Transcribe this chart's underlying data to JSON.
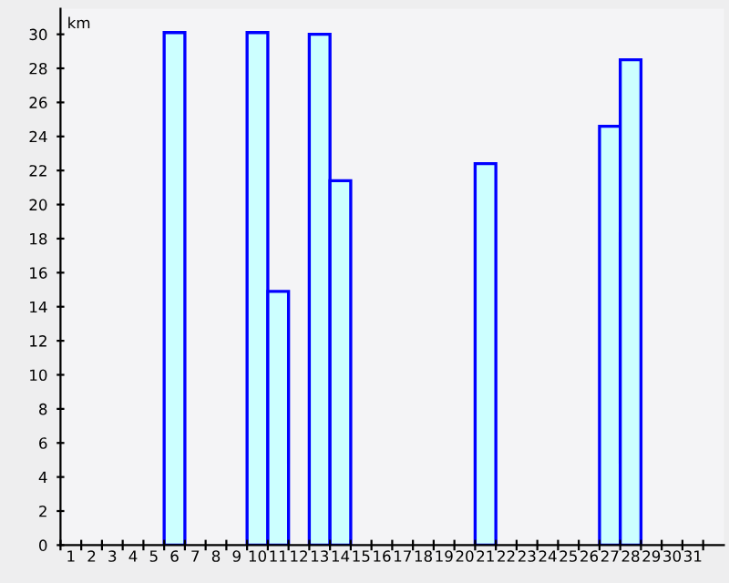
{
  "chart_data": {
    "type": "bar",
    "ylabel": "km",
    "categories": [
      "1",
      "2",
      "3",
      "4",
      "5",
      "6",
      "7",
      "8",
      "9",
      "10",
      "11",
      "12",
      "13",
      "14",
      "15",
      "16",
      "17",
      "18",
      "19",
      "20",
      "21",
      "22",
      "23",
      "24",
      "25",
      "26",
      "27",
      "28",
      "29",
      "30",
      "31"
    ],
    "series": [
      {
        "color": "#ccffff",
        "values": [
          null,
          null,
          null,
          null,
          null,
          30.1,
          null,
          null,
          null,
          30.1,
          14.9,
          null,
          30.0,
          21.4,
          null,
          null,
          null,
          null,
          null,
          null,
          22.4,
          null,
          null,
          null,
          null,
          null,
          24.6,
          28.5,
          null,
          null,
          null
        ]
      }
    ],
    "ylim": [
      0,
      31.5
    ],
    "yticks": [
      0,
      2,
      4,
      6,
      8,
      10,
      12,
      14,
      16,
      18,
      20,
      22,
      24,
      26,
      28,
      30
    ],
    "grid": false
  }
}
